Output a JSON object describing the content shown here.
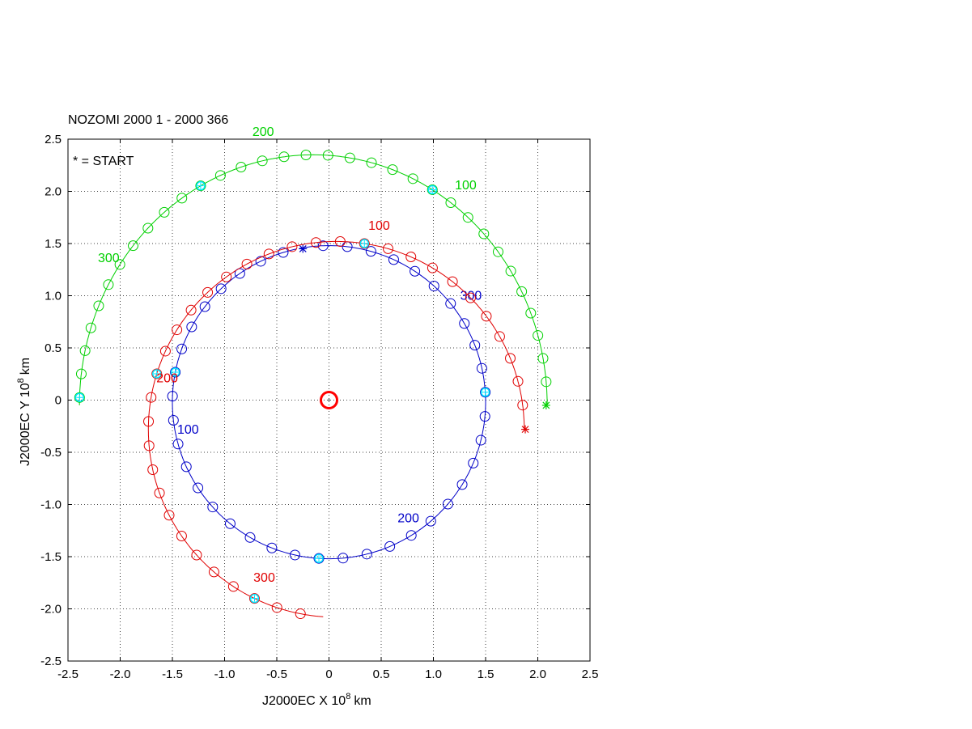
{
  "chart_data": {
    "type": "line",
    "title": "NOZOMI 2000   1 - 2000 366",
    "xlabel": "J2000EC X 10",
    "xlabel_sup": "8",
    "xlabel_unit": "km",
    "ylabel": "J2000EC Y 10",
    "ylabel_sup": "8",
    "ylabel_unit": "km",
    "xlim": [
      -2.5,
      2.5
    ],
    "ylim": [
      -2.5,
      2.5
    ],
    "grid": true,
    "xticks": [
      "-2.5",
      "-2.0",
      "-1.5",
      "-1.0",
      "-0.5",
      "0",
      "0.5",
      "1.0",
      "1.5",
      "2.0",
      "2.5"
    ],
    "yticks": [
      "2.5",
      "2.0",
      "1.5",
      "1.0",
      "0.5",
      "0",
      "-0.5",
      "-1.0",
      "-1.5",
      "-2.0",
      "-2.5"
    ],
    "legend_note": "* = START",
    "sun": {
      "x": 0,
      "y": 0,
      "color": "#ff0000"
    },
    "marker_highlight_color": "#00e5ff",
    "series": [
      {
        "color": "#0000c8",
        "center": [
          0,
          -0.02
        ],
        "rx": 1.5,
        "ry": 1.5,
        "start_deg": 101,
        "end_deg": -258,
        "step_deg": 8.85,
        "start": [
          -0.25,
          1.45
        ],
        "labels": [
          {
            "text": "100",
            "x": -1.35,
            "y": -0.32
          },
          {
            "text": "200",
            "x": 0.76,
            "y": -1.17
          },
          {
            "text": "300",
            "x": 1.36,
            "y": 0.96
          }
        ]
      },
      {
        "color": "#e00000",
        "center": [
          0.07,
          -0.28
        ],
        "rx": 1.8,
        "ry": 1.8,
        "start_deg": 0,
        "end_deg": 266,
        "step_deg": 7.4,
        "start": [
          1.88,
          -0.28
        ],
        "labels": [
          {
            "text": "100",
            "x": 0.48,
            "y": 1.63
          },
          {
            "text": "200",
            "x": -1.55,
            "y": 0.17
          },
          {
            "text": "300",
            "x": -0.62,
            "y": -1.74
          }
        ]
      },
      {
        "color": "#00d000",
        "center": [
          -0.15,
          -0.05
        ],
        "rx": 2.24,
        "ry": 2.4,
        "start_deg": 0,
        "end_deg": 180,
        "step_deg": 5.4,
        "start": [
          2.08,
          -0.05
        ],
        "labels": [
          {
            "text": "100",
            "x": 1.31,
            "y": 2.02
          },
          {
            "text": "200",
            "x": -0.63,
            "y": 2.53
          },
          {
            "text": "300",
            "x": -2.11,
            "y": 1.32
          }
        ]
      }
    ]
  }
}
